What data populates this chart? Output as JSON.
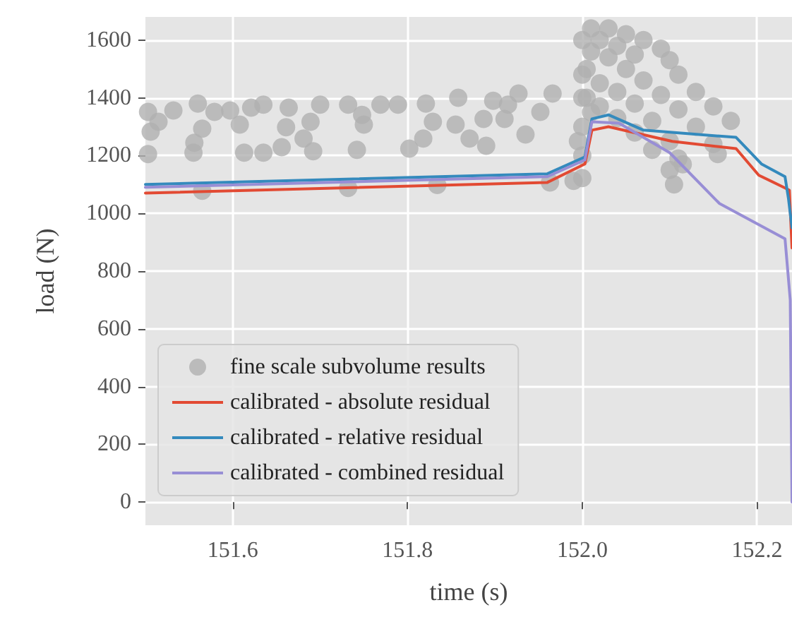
{
  "chart_data": {
    "type": "line",
    "xlabel": "time (s)",
    "ylabel": "load (N)",
    "xlim": [
      151.5,
      152.24
    ],
    "ylim": [
      -80,
      1680
    ],
    "xticks": [
      151.6,
      151.8,
      {
        "value": 152,
        "label": "152.0"
      },
      152.2
    ],
    "yticks": [
      0,
      200,
      400,
      600,
      800,
      1000,
      1200,
      1400,
      1600
    ],
    "grid": true,
    "legend": "bottom left",
    "line_style": "solid",
    "series": [
      {
        "name": "fine scale subvolume results",
        "type": "scatter",
        "marker": "circle",
        "color": "#b0b0b0",
        "x": [
          151.503,
          151.515,
          151.506,
          151.503,
          151.532,
          151.56,
          151.565,
          151.556,
          151.555,
          151.579,
          151.597,
          151.608,
          151.613,
          151.621,
          151.635,
          151.635,
          151.656,
          151.661,
          151.664,
          151.681,
          151.689,
          151.692,
          151.7,
          151.565,
          151.732,
          151.748,
          151.75,
          151.742,
          151.732,
          151.769,
          151.789,
          151.802,
          151.818,
          151.821,
          151.829,
          151.834,
          151.855,
          151.858,
          151.871,
          151.89,
          151.887,
          151.898,
          151.915,
          151.927,
          151.911,
          151.935,
          151.952,
          151.966,
          151.963,
          151.99,
          152.0,
          152.01,
          152.03,
          152.05,
          152.07,
          152.09,
          152.1,
          152.11,
          152.13,
          152.15,
          152.17,
          152.01,
          152.03,
          152.05,
          152.07,
          152.09,
          152.11,
          152.13,
          152.15,
          152.155,
          152.0,
          152.02,
          152.04,
          152.06,
          152.08,
          152.1,
          152.11,
          152.115,
          152.0,
          152.02,
          152.04,
          152.06,
          152.08,
          152.1,
          152.105,
          152.0,
          152.005,
          152.005,
          152.0,
          151.995,
          152.0,
          152.01,
          152.02,
          152.04,
          152.06
        ],
        "values": [
          1351,
          1317,
          1283,
          1205,
          1356,
          1380,
          1293,
          1244,
          1210,
          1351,
          1356,
          1307,
          1210,
          1366,
          1376,
          1210,
          1229,
          1298,
          1366,
          1259,
          1317,
          1215,
          1376,
          1078,
          1376,
          1341,
          1307,
          1220,
          1088,
          1376,
          1376,
          1224,
          1259,
          1380,
          1317,
          1098,
          1307,
          1400,
          1259,
          1234,
          1327,
          1390,
          1376,
          1415,
          1327,
          1273,
          1351,
          1415,
          1107,
          1112,
          1122,
          1640,
          1640,
          1620,
          1600,
          1570,
          1530,
          1480,
          1420,
          1370,
          1320,
          1560,
          1540,
          1500,
          1460,
          1410,
          1360,
          1300,
          1240,
          1205,
          1480,
          1450,
          1420,
          1380,
          1320,
          1250,
          1190,
          1170,
          1400,
          1370,
          1330,
          1280,
          1220,
          1150,
          1100,
          1600,
          1500,
          1400,
          1300,
          1250,
          1200,
          1350,
          1600,
          1580,
          1550
        ]
      },
      {
        "name": "calibrated - absolute residual",
        "color": "#e24a33",
        "x": [
          151.5,
          151.96,
          152.003,
          152.011,
          152.03,
          152.103,
          152.176,
          152.202,
          152.232,
          152.237,
          152.24
        ],
        "values": [
          1070,
          1107,
          1171,
          1288,
          1300,
          1249,
          1224,
          1132,
          1088,
          1080,
          880
        ]
      },
      {
        "name": "calibrated - relative residual",
        "color": "#348abd",
        "x": [
          151.5,
          151.96,
          152.003,
          152.011,
          152.03,
          152.07,
          152.176,
          152.205,
          152.232,
          152.236,
          152.24
        ],
        "values": [
          1100,
          1137,
          1195,
          1327,
          1341,
          1288,
          1263,
          1171,
          1127,
          1050,
          950
        ]
      },
      {
        "name": "calibrated - combined residual",
        "color": "#988ed5",
        "x": [
          151.5,
          151.96,
          152.003,
          152.011,
          152.042,
          152.1,
          152.157,
          152.232,
          152.238,
          152.24
        ],
        "values": [
          1090,
          1127,
          1185,
          1317,
          1312,
          1210,
          1034,
          912,
          700,
          0
        ]
      }
    ]
  }
}
